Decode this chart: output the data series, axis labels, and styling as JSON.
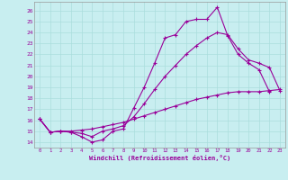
{
  "xlabel": "Windchill (Refroidissement éolien,°C)",
  "ylabel": "",
  "bg_color": "#c8eef0",
  "line_color": "#990099",
  "grid_color": "#aadddd",
  "xlim": [
    -0.5,
    23.5
  ],
  "ylim": [
    13.5,
    26.8
  ],
  "xticks": [
    0,
    1,
    2,
    3,
    4,
    5,
    6,
    7,
    8,
    9,
    10,
    11,
    12,
    13,
    14,
    15,
    16,
    17,
    18,
    19,
    20,
    21,
    22,
    23
  ],
  "yticks": [
    14,
    15,
    16,
    17,
    18,
    19,
    20,
    21,
    22,
    23,
    24,
    25,
    26
  ],
  "line1_x": [
    0,
    1,
    2,
    3,
    4,
    5,
    6,
    7,
    8,
    9,
    10,
    11,
    12,
    13,
    14,
    15,
    16,
    17,
    18,
    19,
    20,
    21,
    22
  ],
  "line1_y": [
    16.1,
    14.9,
    15.0,
    14.9,
    14.5,
    14.0,
    14.2,
    15.0,
    15.2,
    17.1,
    19.0,
    21.2,
    23.5,
    23.8,
    25.0,
    25.2,
    25.2,
    26.3,
    23.7,
    22.0,
    21.2,
    20.6,
    18.6
  ],
  "line2_x": [
    0,
    1,
    2,
    3,
    4,
    5,
    6,
    7,
    8,
    9,
    10,
    11,
    12,
    13,
    14,
    15,
    16,
    17,
    18,
    19,
    20,
    21,
    22,
    23
  ],
  "line2_y": [
    16.1,
    14.9,
    15.0,
    14.9,
    14.8,
    14.5,
    15.0,
    15.2,
    15.5,
    16.3,
    17.5,
    18.8,
    20.0,
    21.0,
    22.0,
    22.8,
    23.5,
    24.0,
    23.8,
    22.5,
    21.5,
    21.2,
    20.8,
    18.7
  ],
  "line3_x": [
    0,
    1,
    2,
    3,
    4,
    5,
    6,
    7,
    8,
    9,
    10,
    11,
    12,
    13,
    14,
    15,
    16,
    17,
    18,
    19,
    20,
    21,
    22,
    23
  ],
  "line3_y": [
    16.1,
    14.9,
    15.0,
    15.0,
    15.1,
    15.2,
    15.4,
    15.6,
    15.8,
    16.1,
    16.4,
    16.7,
    17.0,
    17.3,
    17.6,
    17.9,
    18.1,
    18.3,
    18.5,
    18.6,
    18.6,
    18.6,
    18.7,
    18.8
  ]
}
